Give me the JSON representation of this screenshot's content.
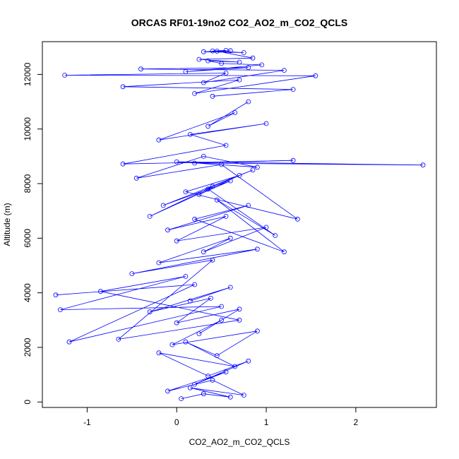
{
  "chart_data": {
    "type": "line",
    "title": "ORCAS RF01-19no2 CO2_AO2_m_CO2_QCLS",
    "xlabel": "CO2_AO2_m_CO2_QCLS",
    "ylabel": "Altitude (m)",
    "xlim": [
      -1.5,
      2.9
    ],
    "ylim": [
      -200,
      13200
    ],
    "x_ticks": [
      -1,
      0,
      1,
      2
    ],
    "y_ticks": [
      0,
      2000,
      4000,
      6000,
      8000,
      10000,
      12000
    ],
    "grid": false,
    "legend": "none",
    "series_color": "#0000ff",
    "marker": "open-circle",
    "series": [
      {
        "x": [
          0.05,
          0.3,
          0.6,
          0.15,
          0.75,
          0.4,
          -0.1,
          0.55,
          0.2,
          0.8,
          0.35,
          -0.2,
          0.65,
          0.1,
          0.45,
          0.9,
          -0.05,
          0.5,
          0.25,
          0.7,
          0.0,
          0.38,
          -0.3,
          0.6,
          0.15
        ],
        "y": [
          120,
          300,
          180,
          520,
          250,
          800,
          400,
          1100,
          650,
          1500,
          950,
          1800,
          1300,
          2200,
          1700,
          2600,
          2100,
          3000,
          2500,
          3400,
          2900,
          3800,
          3300,
          4200,
          3700
        ]
      },
      {
        "x": [
          -1.35,
          0.2,
          -1.2,
          0.5,
          -1.3,
          0.1,
          -0.85,
          0.7,
          -0.65,
          0.4,
          -0.5,
          0.9,
          -0.2,
          0.6,
          0.3,
          1.0,
          0.0,
          0.55,
          -0.1,
          0.8,
          0.2,
          1.2,
          0.45,
          1.1,
          0.35
        ],
        "y": [
          3920,
          4300,
          2200,
          3500,
          3380,
          4600,
          4050,
          3000,
          2300,
          5200,
          4700,
          5600,
          5100,
          6000,
          5500,
          6400,
          5900,
          6800,
          6300,
          7200,
          6700,
          5500,
          7400,
          6100,
          7800
        ]
      },
      {
        "x": [
          0.25,
          0.6,
          -0.15,
          0.85,
          0.4,
          -0.3,
          0.7,
          0.1,
          1.35,
          0.5,
          -0.45,
          0.3,
          0.9,
          0.0,
          2.75,
          0.2,
          1.3,
          -0.6,
          0.55,
          0.15,
          1.0,
          -0.2,
          0.65,
          0.35,
          0.8
        ],
        "y": [
          7600,
          8100,
          7200,
          8500,
          7900,
          6800,
          8300,
          7700,
          6700,
          8700,
          8200,
          9000,
          8600,
          8800,
          8680,
          8750,
          8850,
          8720,
          9400,
          9800,
          10200,
          9600,
          10600,
          10100,
          11000
        ]
      },
      {
        "x": [
          0.4,
          1.3,
          -0.6,
          0.7,
          0.2,
          1.55,
          -1.25,
          0.55,
          0.3,
          1.2,
          -0.4,
          0.8,
          0.1,
          0.95,
          0.5,
          0.35,
          0.7,
          0.25,
          0.85,
          0.45,
          0.6,
          0.3,
          0.75,
          0.4,
          0.55
        ],
        "y": [
          11200,
          11450,
          11550,
          11800,
          11300,
          11950,
          11970,
          12050,
          11700,
          12150,
          12200,
          12250,
          12100,
          12350,
          12400,
          12500,
          12450,
          12550,
          12600,
          12850,
          12870,
          12830,
          12800,
          12860,
          12880
        ]
      }
    ]
  }
}
